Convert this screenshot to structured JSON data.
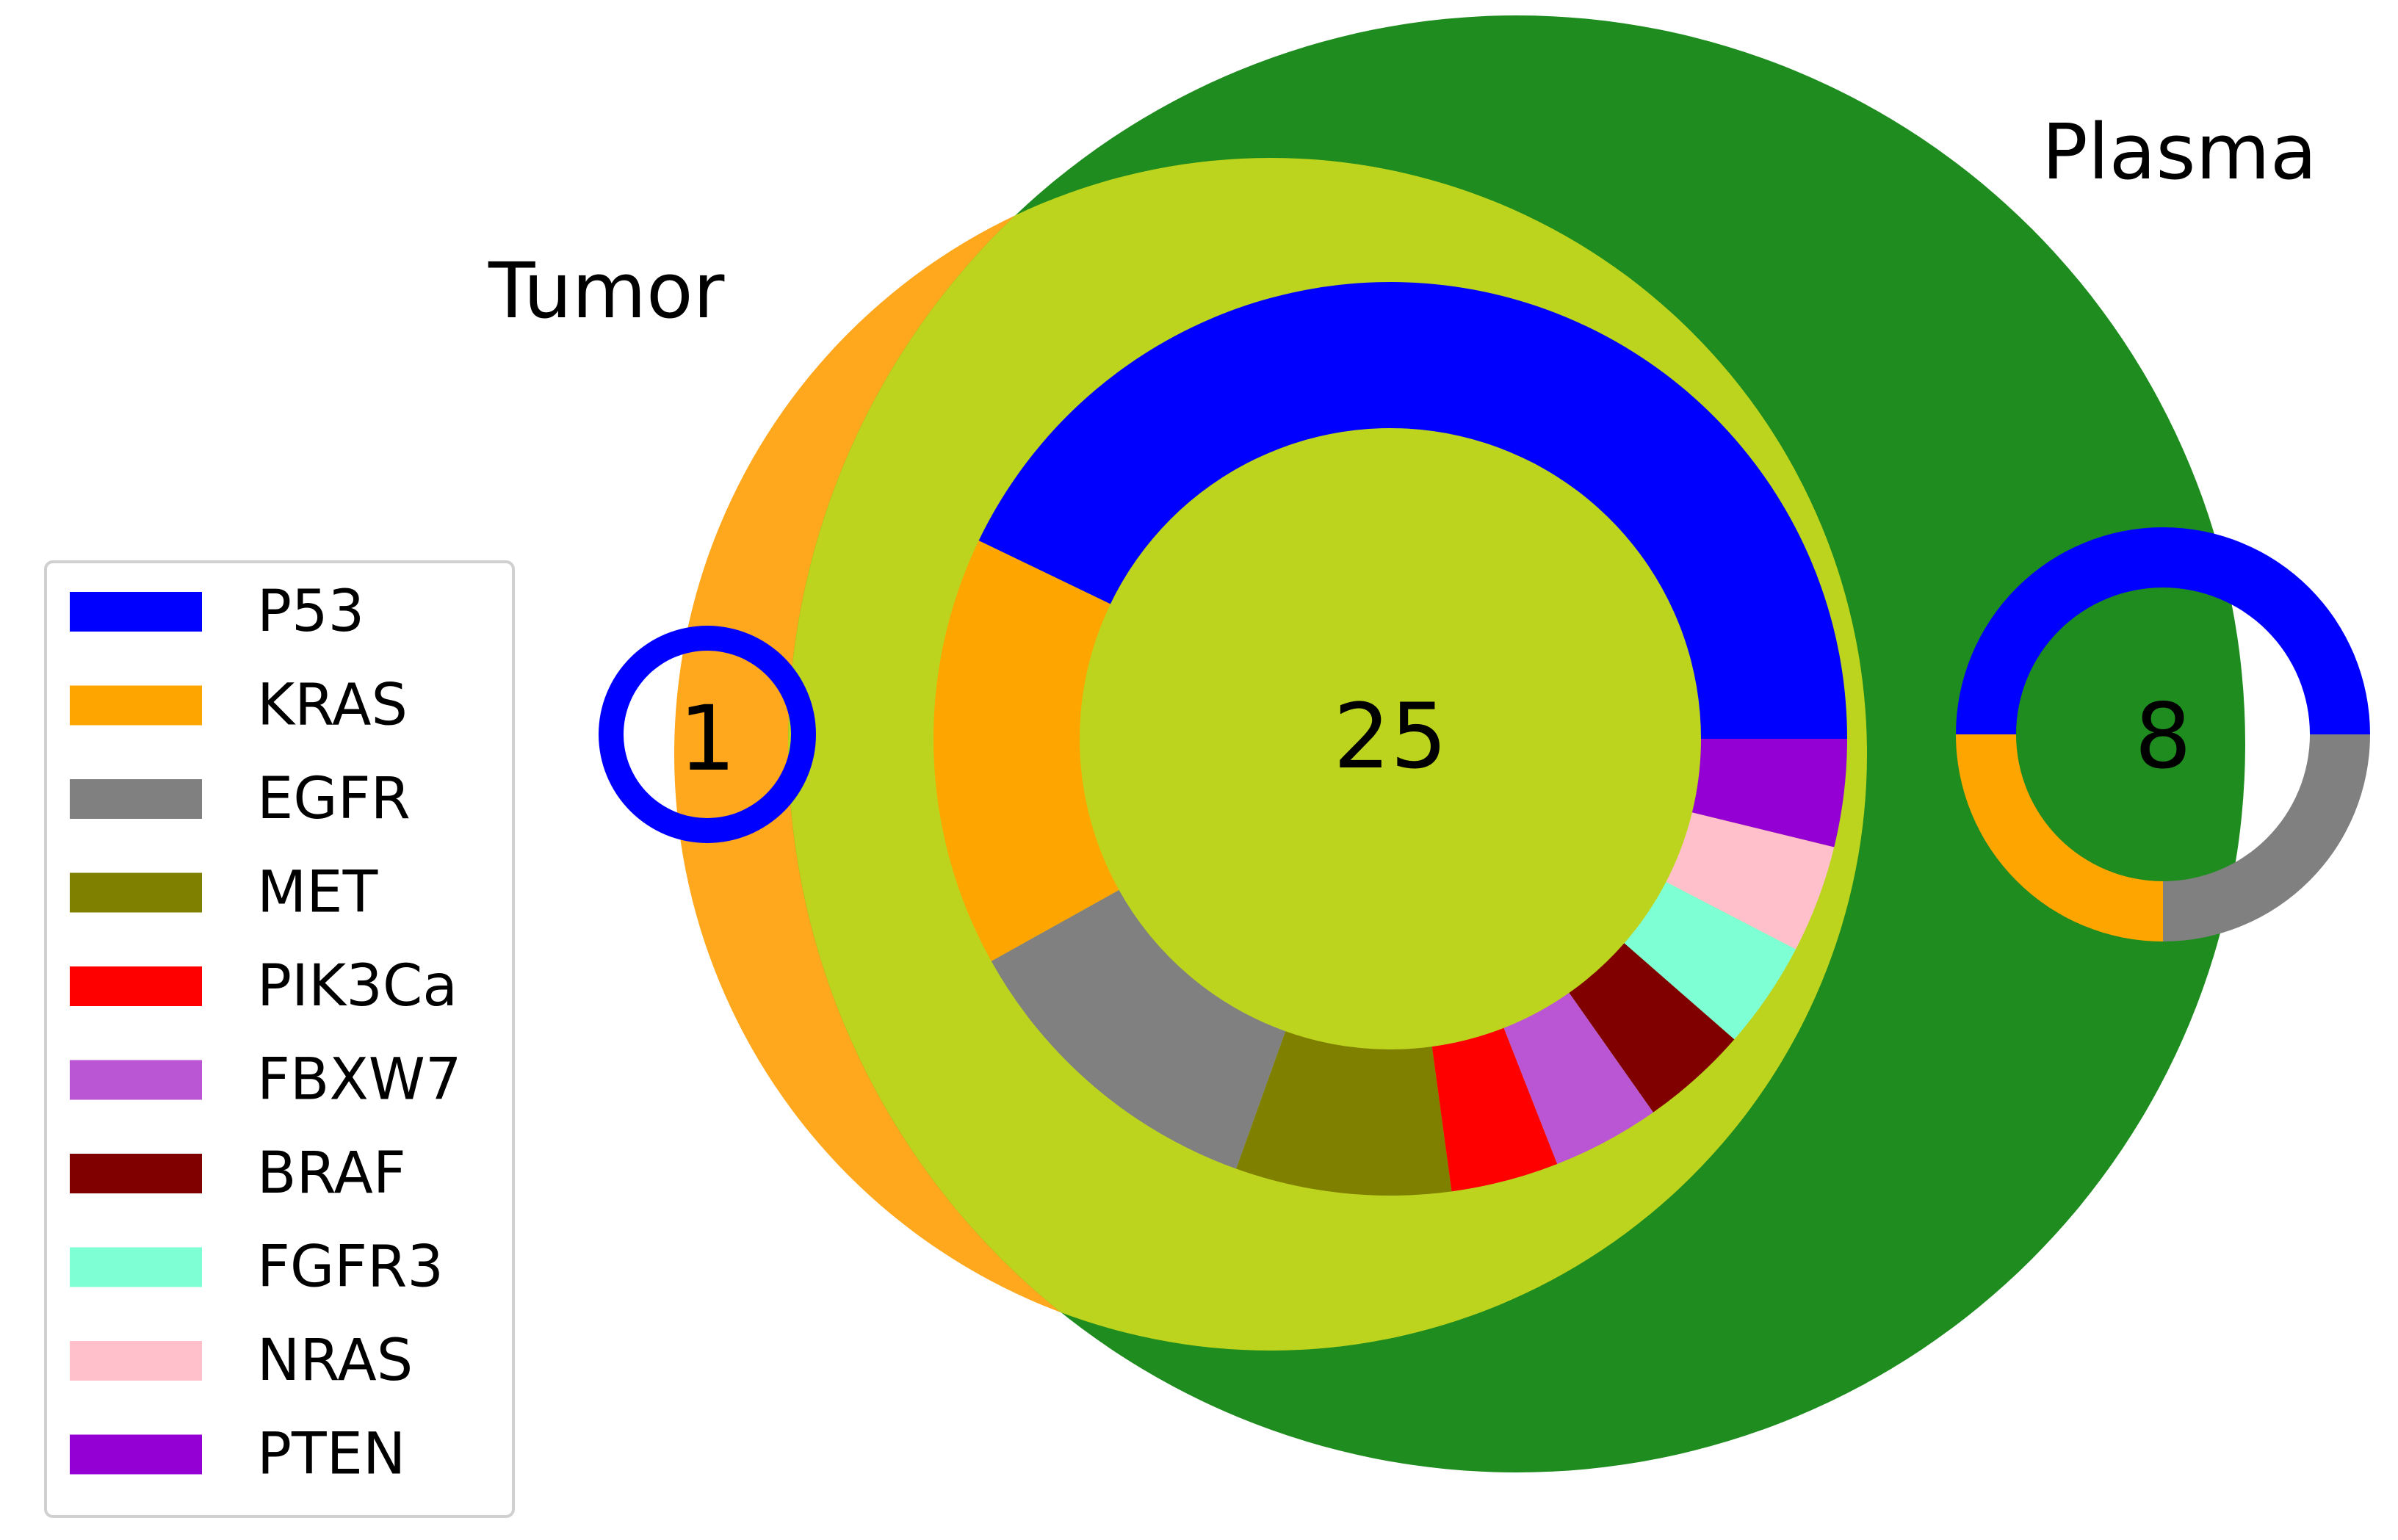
{
  "chart_data": {
    "type": "venn",
    "sets": [
      {
        "name": "Tumor",
        "color": "#FFA81E"
      },
      {
        "name": "Plasma",
        "color": "#1E8C1E"
      }
    ],
    "intersection_color": "#BCD41E",
    "regions": [
      {
        "id": "tumor-only",
        "count": "1",
        "donut": [
          {
            "gene": "P53",
            "value": 1
          }
        ]
      },
      {
        "id": "shared",
        "count": "25",
        "donut": [
          {
            "gene": "P53",
            "value": 45
          },
          {
            "gene": "KRAS",
            "value": 16
          },
          {
            "gene": "EGFR",
            "value": 12
          },
          {
            "gene": "MET",
            "value": 8
          },
          {
            "gene": "PIK3Ca",
            "value": 4
          },
          {
            "gene": "FBXW7",
            "value": 4
          },
          {
            "gene": "BRAF",
            "value": 4
          },
          {
            "gene": "FGFR3",
            "value": 4
          },
          {
            "gene": "NRAS",
            "value": 4
          },
          {
            "gene": "PTEN",
            "value": 4
          }
        ]
      },
      {
        "id": "plasma-only",
        "count": "8",
        "donut": [
          {
            "gene": "P53",
            "value": 50
          },
          {
            "gene": "KRAS",
            "value": 25
          },
          {
            "gene": "EGFR",
            "value": 25
          }
        ]
      }
    ],
    "legend": {
      "placement": "left",
      "items": [
        {
          "label": "P53",
          "color": "#0000FF"
        },
        {
          "label": "KRAS",
          "color": "#FFA500"
        },
        {
          "label": "EGFR",
          "color": "#808080"
        },
        {
          "label": "MET",
          "color": "#808000"
        },
        {
          "label": "PIK3Ca",
          "color": "#FF0000"
        },
        {
          "label": "FBXW7",
          "color": "#BA55D3"
        },
        {
          "label": "BRAF",
          "color": "#800000"
        },
        {
          "label": "FGFR3",
          "color": "#7FFFD4"
        },
        {
          "label": "NRAS",
          "color": "#FFC0CB"
        },
        {
          "label": "PTEN",
          "color": "#9400D3"
        }
      ]
    }
  }
}
